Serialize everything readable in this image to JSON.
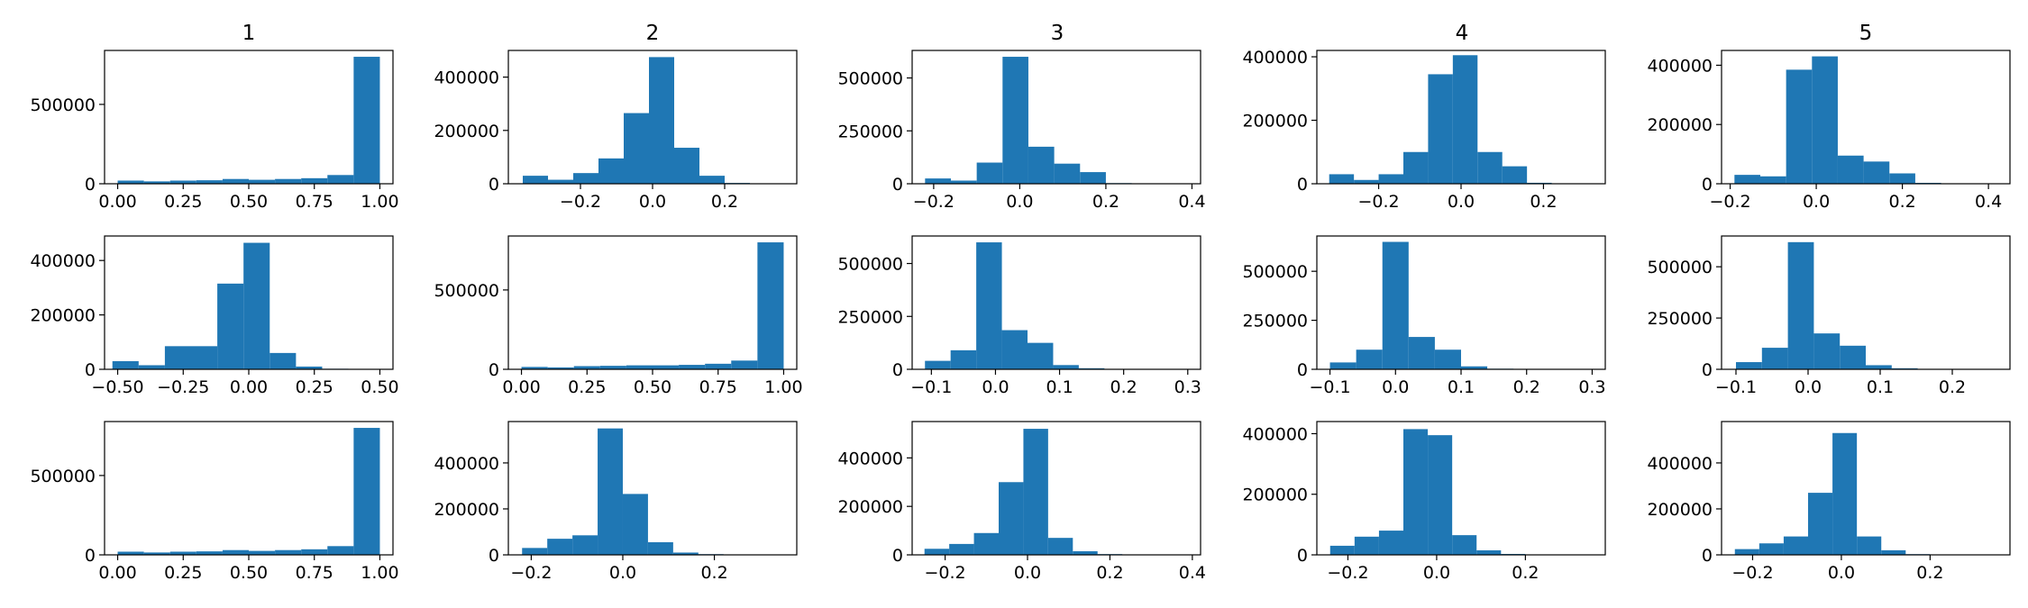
{
  "colors": {
    "bar": "#1f77b4",
    "axis": "#000000",
    "background": "#ffffff"
  },
  "column_titles": [
    "1",
    "2",
    "3",
    "4",
    "5"
  ],
  "chart_data": [
    {
      "type": "bar",
      "histogram": true,
      "row": 0,
      "col": 0,
      "title": "1",
      "x_ticks": [
        "0.00",
        "0.25",
        "0.50",
        "0.75",
        "1.00"
      ],
      "xlim": [
        -0.05,
        1.05
      ],
      "y_ticks": [
        "0",
        "500000"
      ],
      "ylim": [
        0,
        840000
      ],
      "bin_edges": [
        0.0,
        0.1,
        0.2,
        0.3,
        0.4,
        0.5,
        0.6,
        0.7,
        0.8,
        0.9,
        1.0
      ],
      "values": [
        20000,
        15000,
        20000,
        22000,
        30000,
        25000,
        30000,
        35000,
        55000,
        800000
      ]
    },
    {
      "type": "bar",
      "histogram": true,
      "row": 0,
      "col": 1,
      "title": "2",
      "x_ticks": [
        "−0.2",
        "0.0",
        "0.2"
      ],
      "xlim": [
        -0.4,
        0.4
      ],
      "y_ticks": [
        "0",
        "200000",
        "400000"
      ],
      "ylim": [
        0,
        500000
      ],
      "bin_edges": [
        -0.36,
        -0.29,
        -0.22,
        -0.15,
        -0.08,
        -0.01,
        0.06,
        0.13,
        0.2,
        0.27,
        0.34
      ],
      "values": [
        30000,
        15000,
        40000,
        95000,
        265000,
        475000,
        135000,
        30000,
        3000,
        1000
      ]
    },
    {
      "type": "bar",
      "histogram": true,
      "row": 0,
      "col": 2,
      "title": "3",
      "x_ticks": [
        "−0.2",
        "0.0",
        "0.2",
        "0.4"
      ],
      "xlim": [
        -0.25,
        0.42
      ],
      "y_ticks": [
        "0",
        "250000",
        "500000"
      ],
      "ylim": [
        0,
        630000
      ],
      "bin_edges": [
        -0.22,
        -0.16,
        -0.1,
        -0.04,
        0.02,
        0.08,
        0.14,
        0.2,
        0.26,
        0.32,
        0.38
      ],
      "values": [
        25000,
        15000,
        100000,
        600000,
        175000,
        95000,
        55000,
        3000,
        1000,
        500
      ]
    },
    {
      "type": "bar",
      "histogram": true,
      "row": 0,
      "col": 3,
      "title": "4",
      "x_ticks": [
        "−0.2",
        "0.0",
        "0.2"
      ],
      "xlim": [
        -0.35,
        0.35
      ],
      "y_ticks": [
        "0",
        "200000",
        "400000"
      ],
      "ylim": [
        0,
        420000
      ],
      "bin_edges": [
        -0.32,
        -0.26,
        -0.2,
        -0.14,
        -0.08,
        -0.02,
        0.04,
        0.1,
        0.16,
        0.22,
        0.28
      ],
      "values": [
        30000,
        12000,
        30000,
        100000,
        345000,
        405000,
        100000,
        55000,
        3000,
        1000
      ]
    },
    {
      "type": "bar",
      "histogram": true,
      "row": 0,
      "col": 4,
      "title": "5",
      "x_ticks": [
        "−0.2",
        "0.0",
        "0.2",
        "0.4"
      ],
      "xlim": [
        -0.22,
        0.45
      ],
      "y_ticks": [
        "0",
        "200000",
        "400000"
      ],
      "ylim": [
        0,
        450000
      ],
      "bin_edges": [
        -0.19,
        -0.13,
        -0.07,
        -0.01,
        0.05,
        0.11,
        0.17,
        0.23,
        0.29,
        0.35,
        0.41
      ],
      "values": [
        30000,
        25000,
        385000,
        430000,
        95000,
        75000,
        35000,
        3000,
        1000,
        500
      ]
    },
    {
      "type": "bar",
      "histogram": true,
      "row": 1,
      "col": 0,
      "title": "",
      "x_ticks": [
        "−0.50",
        "−0.25",
        "0.00",
        "0.25",
        "0.50"
      ],
      "xlim": [
        -0.55,
        0.55
      ],
      "y_ticks": [
        "0",
        "200000",
        "400000"
      ],
      "ylim": [
        0,
        490000
      ],
      "bin_edges": [
        -0.52,
        -0.42,
        -0.32,
        -0.22,
        -0.12,
        -0.02,
        0.08,
        0.18,
        0.28,
        0.38,
        0.48
      ],
      "values": [
        30000,
        15000,
        85000,
        85000,
        315000,
        465000,
        60000,
        10000,
        2000,
        1000
      ]
    },
    {
      "type": "bar",
      "histogram": true,
      "row": 1,
      "col": 1,
      "title": "",
      "x_ticks": [
        "0.00",
        "0.25",
        "0.50",
        "0.75",
        "1.00"
      ],
      "xlim": [
        -0.05,
        1.05
      ],
      "y_ticks": [
        "0",
        "500000"
      ],
      "ylim": [
        0,
        840000
      ],
      "bin_edges": [
        0.0,
        0.1,
        0.2,
        0.3,
        0.4,
        0.5,
        0.6,
        0.7,
        0.8,
        0.9,
        1.0
      ],
      "values": [
        15000,
        12000,
        20000,
        22000,
        25000,
        25000,
        28000,
        35000,
        55000,
        800000
      ]
    },
    {
      "type": "bar",
      "histogram": true,
      "row": 1,
      "col": 2,
      "title": "",
      "x_ticks": [
        "−0.1",
        "0.0",
        "0.1",
        "0.2",
        "0.3"
      ],
      "xlim": [
        -0.13,
        0.32
      ],
      "y_ticks": [
        "0",
        "250000",
        "500000"
      ],
      "ylim": [
        0,
        630000
      ],
      "bin_edges": [
        -0.11,
        -0.07,
        -0.03,
        0.01,
        0.05,
        0.09,
        0.13,
        0.17,
        0.21,
        0.25,
        0.29
      ],
      "values": [
        40000,
        90000,
        600000,
        185000,
        125000,
        20000,
        5000,
        2000,
        1000,
        500
      ]
    },
    {
      "type": "bar",
      "histogram": true,
      "row": 1,
      "col": 3,
      "title": "",
      "x_ticks": [
        "−0.1",
        "0.0",
        "0.1",
        "0.2",
        "0.3"
      ],
      "xlim": [
        -0.12,
        0.32
      ],
      "y_ticks": [
        "0",
        "250000",
        "500000"
      ],
      "ylim": [
        0,
        680000
      ],
      "bin_edges": [
        -0.1,
        -0.06,
        -0.02,
        0.02,
        0.06,
        0.1,
        0.14,
        0.18,
        0.22,
        0.26,
        0.3
      ],
      "values": [
        35000,
        100000,
        650000,
        165000,
        100000,
        15000,
        3000,
        1000,
        500,
        300
      ]
    },
    {
      "type": "bar",
      "histogram": true,
      "row": 1,
      "col": 4,
      "title": "",
      "x_ticks": [
        "−0.1",
        "0.0",
        "0.1",
        "0.2"
      ],
      "xlim": [
        -0.12,
        0.28
      ],
      "y_ticks": [
        "0",
        "250000",
        "500000"
      ],
      "ylim": [
        0,
        650000
      ],
      "bin_edges": [
        -0.1,
        -0.064,
        -0.028,
        0.008,
        0.044,
        0.08,
        0.116,
        0.152,
        0.188,
        0.224,
        0.26
      ],
      "values": [
        35000,
        105000,
        620000,
        175000,
        115000,
        20000,
        5000,
        2000,
        1000,
        500
      ]
    },
    {
      "type": "bar",
      "histogram": true,
      "row": 2,
      "col": 0,
      "title": "",
      "x_ticks": [
        "0.00",
        "0.25",
        "0.50",
        "0.75",
        "1.00"
      ],
      "xlim": [
        -0.05,
        1.05
      ],
      "y_ticks": [
        "0",
        "500000"
      ],
      "ylim": [
        0,
        840000
      ],
      "bin_edges": [
        0.0,
        0.1,
        0.2,
        0.3,
        0.4,
        0.5,
        0.6,
        0.7,
        0.8,
        0.9,
        1.0
      ],
      "values": [
        20000,
        15000,
        20000,
        22000,
        30000,
        25000,
        30000,
        35000,
        55000,
        800000
      ]
    },
    {
      "type": "bar",
      "histogram": true,
      "row": 2,
      "col": 1,
      "title": "",
      "x_ticks": [
        "−0.2",
        "0.0",
        "0.2"
      ],
      "xlim": [
        -0.25,
        0.38
      ],
      "y_ticks": [
        "0",
        "200000",
        "400000"
      ],
      "ylim": [
        0,
        580000
      ],
      "bin_edges": [
        -0.22,
        -0.165,
        -0.11,
        -0.055,
        0.0,
        0.055,
        0.11,
        0.165,
        0.22,
        0.275,
        0.33
      ],
      "values": [
        30000,
        70000,
        85000,
        550000,
        265000,
        55000,
        10000,
        3000,
        1000,
        500
      ]
    },
    {
      "type": "bar",
      "histogram": true,
      "row": 2,
      "col": 2,
      "title": "",
      "x_ticks": [
        "−0.2",
        "0.0",
        "0.2",
        "0.4"
      ],
      "xlim": [
        -0.28,
        0.42
      ],
      "y_ticks": [
        "0",
        "200000",
        "400000"
      ],
      "ylim": [
        0,
        550000
      ],
      "bin_edges": [
        -0.25,
        -0.19,
        -0.13,
        -0.07,
        -0.01,
        0.05,
        0.11,
        0.17,
        0.23,
        0.29,
        0.35
      ],
      "values": [
        25000,
        45000,
        90000,
        300000,
        520000,
        70000,
        15000,
        3000,
        1000,
        500
      ]
    },
    {
      "type": "bar",
      "histogram": true,
      "row": 2,
      "col": 3,
      "title": "",
      "x_ticks": [
        "−0.2",
        "0.0",
        "0.2"
      ],
      "xlim": [
        -0.27,
        0.38
      ],
      "y_ticks": [
        "0",
        "200000",
        "400000"
      ],
      "ylim": [
        0,
        440000
      ],
      "bin_edges": [
        -0.24,
        -0.185,
        -0.13,
        -0.075,
        -0.02,
        0.035,
        0.09,
        0.145,
        0.2,
        0.255,
        0.31
      ],
      "values": [
        30000,
        60000,
        80000,
        415000,
        395000,
        65000,
        15000,
        3000,
        1000,
        500
      ]
    },
    {
      "type": "bar",
      "histogram": true,
      "row": 2,
      "col": 4,
      "title": "",
      "x_ticks": [
        "−0.2",
        "0.0",
        "0.2"
      ],
      "xlim": [
        -0.27,
        0.38
      ],
      "y_ticks": [
        "0",
        "200000",
        "400000"
      ],
      "ylim": [
        0,
        580000
      ],
      "bin_edges": [
        -0.24,
        -0.185,
        -0.13,
        -0.075,
        -0.02,
        0.035,
        0.09,
        0.145,
        0.2,
        0.255,
        0.31
      ],
      "values": [
        25000,
        50000,
        80000,
        270000,
        530000,
        80000,
        20000,
        3000,
        1000,
        500
      ]
    }
  ]
}
